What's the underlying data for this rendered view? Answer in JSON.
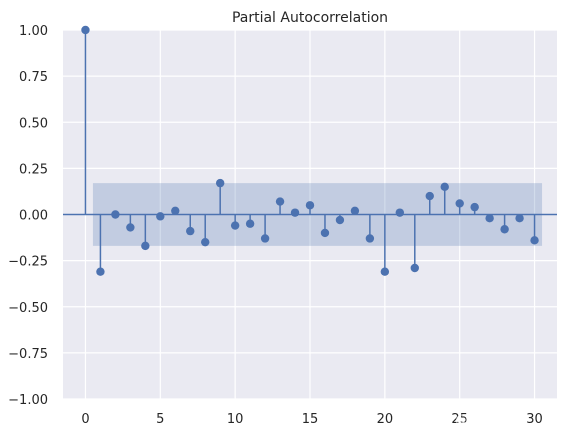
{
  "chart_data": {
    "type": "stem",
    "title": "Partial Autocorrelation",
    "xlabel": "",
    "ylabel": "",
    "xlim": [
      -1.5,
      31.5
    ],
    "ylim": [
      -1.0,
      1.0
    ],
    "xticks": [
      0,
      5,
      10,
      15,
      20,
      25,
      30
    ],
    "yticks": [
      -1.0,
      -0.75,
      -0.5,
      -0.25,
      0.0,
      0.25,
      0.5,
      0.75,
      1.0
    ],
    "ytick_labels": [
      "−1.00",
      "−0.75",
      "−0.50",
      "−0.25",
      "0.00",
      "0.25",
      "0.50",
      "0.75",
      "1.00"
    ],
    "confidence_band": {
      "lower": -0.17,
      "upper": 0.17,
      "x_start": 0.5,
      "x_end": 30.5,
      "color": "#4c72b0"
    },
    "grid": true,
    "series": [
      {
        "x": [
          0,
          1,
          2,
          3,
          4,
          5,
          6,
          7,
          8,
          9,
          10,
          11,
          12,
          13,
          14,
          15,
          16,
          17,
          18,
          19,
          20,
          21,
          22,
          23,
          24,
          25,
          26,
          27,
          28,
          29,
          30
        ],
        "values": [
          1.0,
          -0.31,
          0.0,
          -0.07,
          -0.17,
          -0.01,
          0.02,
          -0.09,
          -0.15,
          0.17,
          -0.06,
          -0.05,
          -0.13,
          0.07,
          0.01,
          0.05,
          -0.1,
          -0.03,
          0.02,
          -0.13,
          -0.31,
          0.01,
          -0.29,
          0.1,
          0.15,
          0.06,
          0.04,
          -0.02,
          -0.08,
          -0.02,
          -0.14
        ]
      }
    ],
    "colors": {
      "marker": "#4c72b0",
      "background": "#eaeaf2",
      "grid": "#ffffff"
    }
  },
  "watermark": "CSDN @宇易yyee"
}
